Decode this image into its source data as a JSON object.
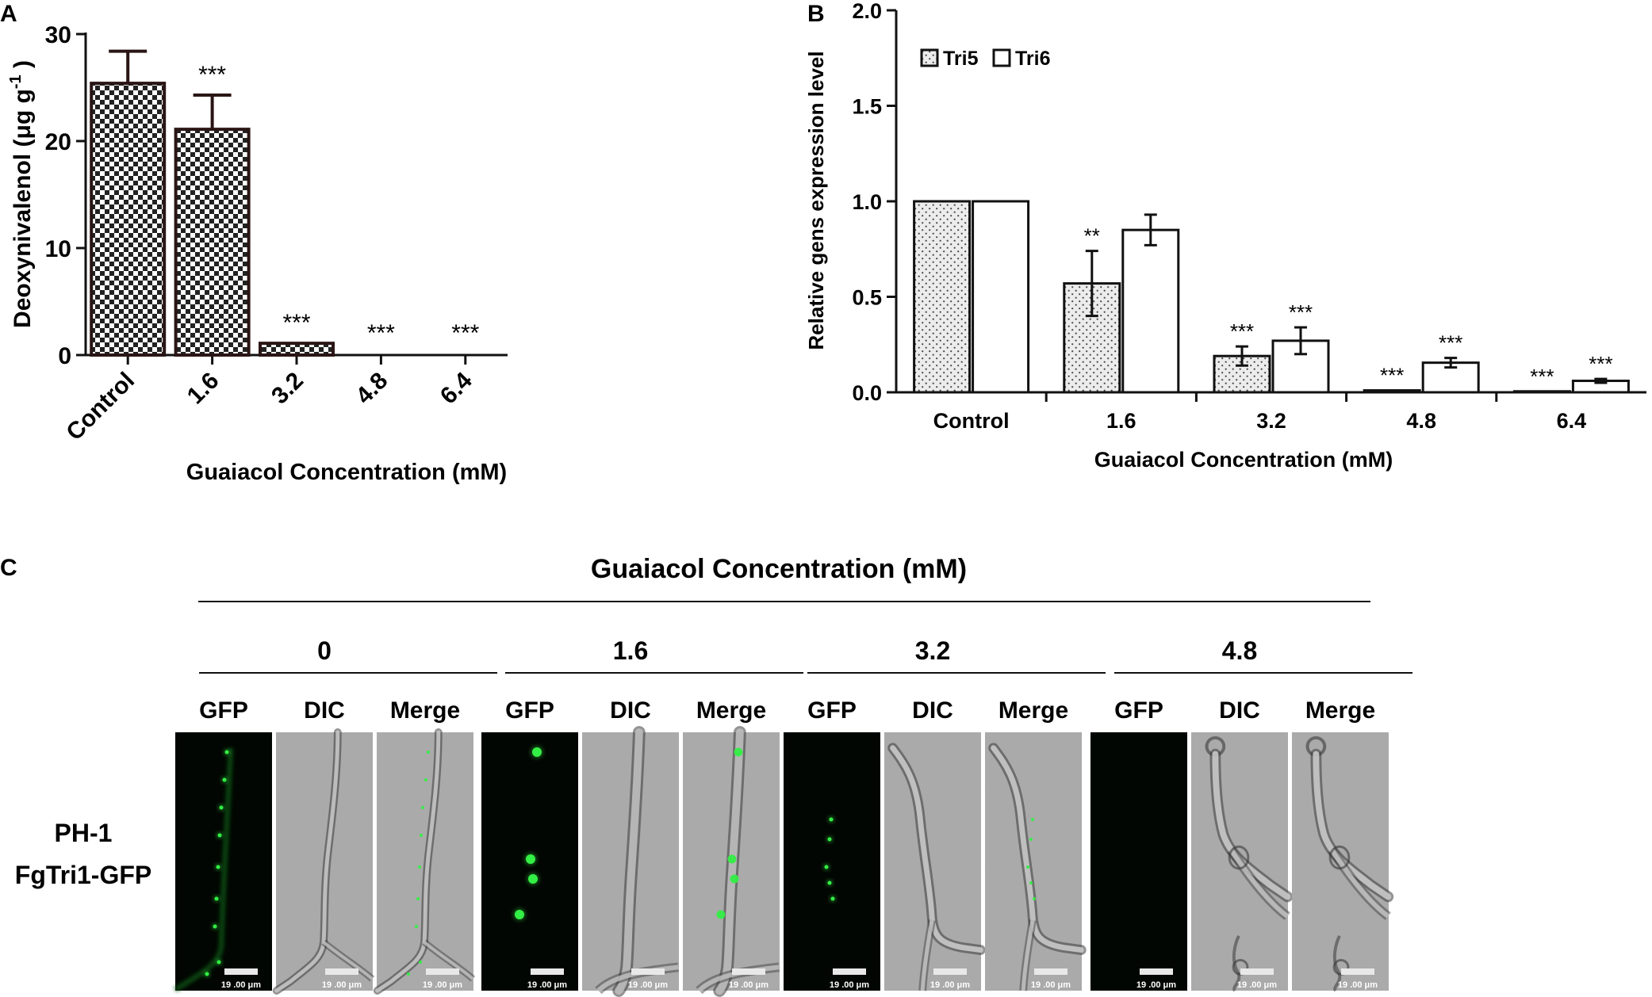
{
  "panels": {
    "a": {
      "label": "A"
    },
    "b": {
      "label": "B"
    },
    "c": {
      "label": "C"
    }
  },
  "chart_data": [
    {
      "id": "A",
      "type": "bar",
      "title": "",
      "xlabel": "Guaiacol Concentration  (mM)",
      "ylabel": "Deoxynivalenol (μg g",
      "ylabel_sup": "-1",
      "ylabel_tail": " )",
      "categories": [
        "Control",
        "1.6",
        "3.2",
        "4.8",
        "6.4"
      ],
      "values": [
        25.4,
        21.1,
        1.1,
        0,
        0
      ],
      "errors": [
        3.0,
        3.2,
        0,
        0,
        0
      ],
      "significance": [
        "",
        "***",
        "***",
        "***",
        "***"
      ],
      "ylim": [
        0,
        30
      ],
      "yticks": [
        "0",
        "10",
        "20",
        "30"
      ],
      "pattern": "checkerboard"
    },
    {
      "id": "B",
      "type": "bar",
      "title": "",
      "xlabel": "Guaiacol Concentration  (mM)",
      "ylabel": "Relative gens expression level",
      "categories": [
        "Control",
        "1.6",
        "3.2",
        "4.8",
        "6.4"
      ],
      "ylim": [
        0,
        2.0
      ],
      "yticks": [
        "0.0",
        "0.5",
        "1.0",
        "1.5",
        "2.0"
      ],
      "legend_position": "top-left",
      "series": [
        {
          "name": "Tri5",
          "values": [
            1.0,
            0.57,
            0.19,
            0.01,
            0.005
          ],
          "errors": [
            0,
            0.17,
            0.05,
            0,
            0
          ],
          "significance": [
            "",
            "**",
            "***",
            "***",
            "***"
          ],
          "fill": "dotted"
        },
        {
          "name": "Tri6",
          "values": [
            1.0,
            0.85,
            0.27,
            0.155,
            0.06
          ],
          "errors": [
            0,
            0.08,
            0.07,
            0.025,
            0.01
          ],
          "significance": [
            "",
            "",
            "***",
            "***",
            "***"
          ],
          "fill": "white"
        }
      ]
    }
  ],
  "microscopy": {
    "title": "Guaiacol Concentration (mM)",
    "row_label_1": "PH-1",
    "row_label_2": "FgTri1-GFP",
    "scale_bar_text": "19 .00 μm",
    "channel_labels": [
      "GFP",
      "DIC",
      "Merge"
    ],
    "groups": [
      {
        "concentration": "0"
      },
      {
        "concentration": "1.6"
      },
      {
        "concentration": "3.2"
      },
      {
        "concentration": "4.8"
      }
    ],
    "colors": {
      "gfp_signal": "#33ee44",
      "gfp_background": "#020602",
      "dic_background": "#a9a9a9"
    }
  }
}
